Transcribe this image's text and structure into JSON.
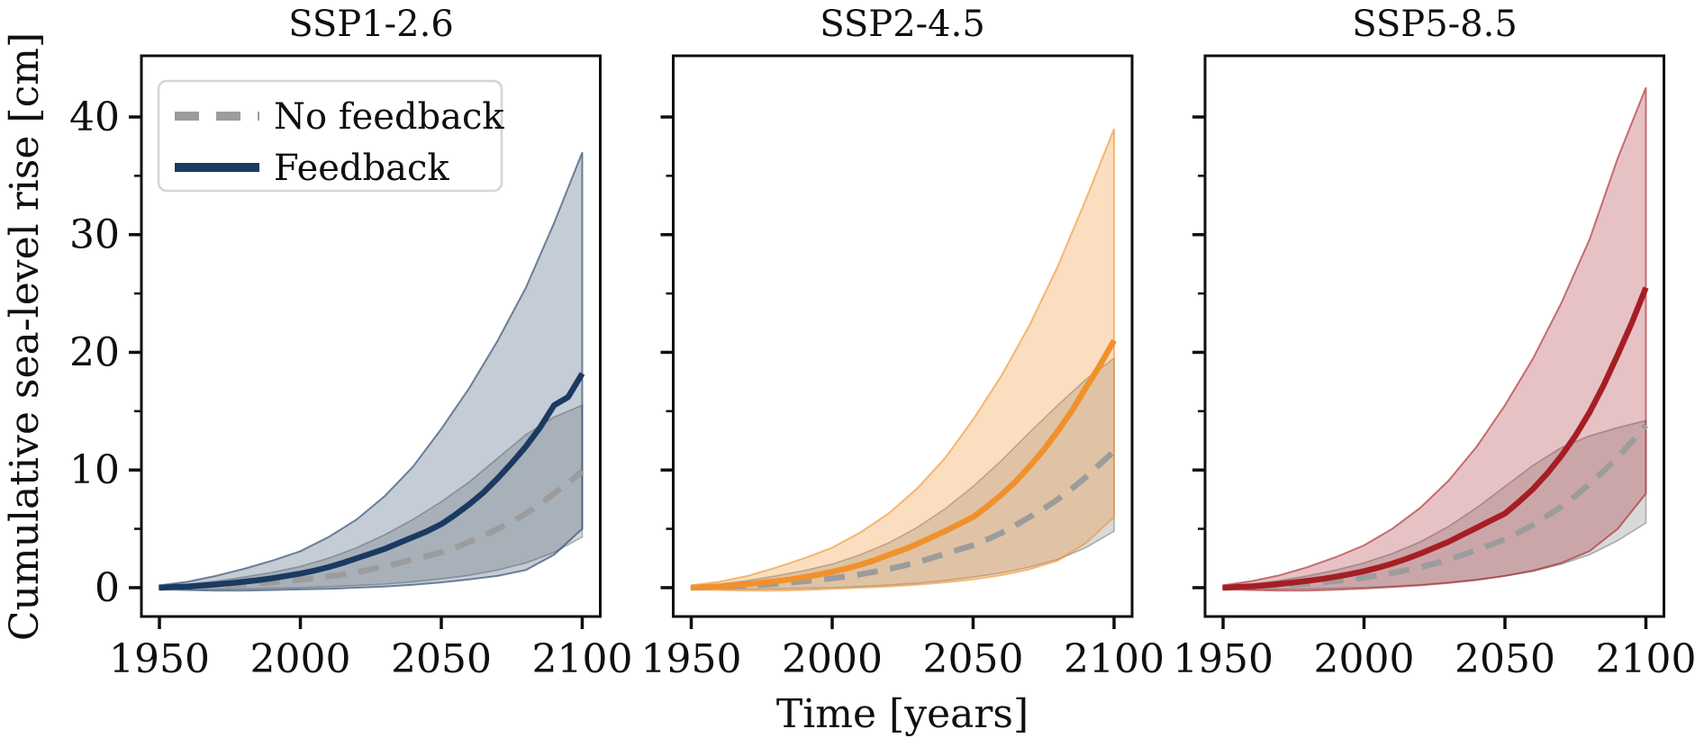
{
  "figure": {
    "background": "#ffffff",
    "text_color": "#0f0f0f"
  },
  "chart_data": {
    "type": "line",
    "title": "",
    "xlabel": "Time [years]",
    "ylabel": "Cumulative sea-level rise [cm]",
    "xlim": [
      1943.6,
      2106.4
    ],
    "ylim": [
      -2.45,
      45.2
    ],
    "xticks": [
      1950,
      2000,
      2050,
      2100
    ],
    "yticks": [
      0,
      10,
      20,
      30,
      40
    ],
    "yticks_minor": [
      5,
      15,
      25,
      35
    ],
    "grid": false,
    "legend": {
      "position": "upper left",
      "entries": [
        {
          "label": "No feedback",
          "style": "dashed",
          "color": "#9c9c9c"
        },
        {
          "label": "Feedback",
          "style": "solid",
          "color": "#1b3a62"
        }
      ]
    },
    "no_feedback_color": "#9c9c9c",
    "no_feedback_band_color": "#787878",
    "x_fine": [
      1950,
      1955,
      1960,
      1965,
      1970,
      1975,
      1980,
      1985,
      1990,
      1995,
      2000,
      2005,
      2010,
      2015,
      2020,
      2025,
      2030,
      2035,
      2040,
      2045,
      2050,
      2055,
      2060,
      2065,
      2070,
      2075,
      2080,
      2085,
      2090,
      2095,
      2100
    ],
    "x_coarse": [
      1950,
      1960,
      1970,
      1980,
      1990,
      2000,
      2010,
      2020,
      2030,
      2040,
      2050,
      2060,
      2070,
      2080,
      2090,
      2100
    ],
    "panels": [
      {
        "title": "SSP1-2.6",
        "color": "#1b3a62",
        "band_alpha": 0.26,
        "feedback": [
          0,
          0.05,
          0.1,
          0.18,
          0.27,
          0.38,
          0.5,
          0.64,
          0.8,
          1.0,
          1.2,
          1.45,
          1.75,
          2.1,
          2.5,
          2.9,
          3.3,
          3.8,
          4.3,
          4.8,
          5.4,
          6.2,
          7.1,
          8.1,
          9.3,
          10.6,
          12.0,
          13.6,
          15.5,
          16.2,
          18.2
        ],
        "no_feedback": [
          0,
          0.03,
          0.06,
          0.1,
          0.15,
          0.21,
          0.28,
          0.36,
          0.45,
          0.55,
          0.67,
          0.8,
          0.95,
          1.12,
          1.32,
          1.55,
          1.8,
          2.1,
          2.4,
          2.7,
          3.0,
          3.4,
          3.9,
          4.4,
          5.0,
          5.6,
          6.3,
          7.1,
          8.0,
          8.9,
          9.9
        ],
        "feedback_band_upper": [
          0.2,
          0.5,
          1.0,
          1.6,
          2.3,
          3.1,
          4.3,
          5.8,
          7.8,
          10.3,
          13.5,
          17.0,
          21.0,
          25.5,
          31.0,
          37.0
        ],
        "feedback_band_lower": [
          -0.15,
          -0.2,
          -0.25,
          -0.25,
          -0.2,
          -0.15,
          -0.1,
          0.0,
          0.1,
          0.25,
          0.45,
          0.7,
          1.0,
          1.5,
          2.8,
          5.0
        ],
        "no_feedback_band_upper": [
          0.1,
          0.3,
          0.55,
          0.9,
          1.3,
          1.8,
          2.5,
          3.4,
          4.5,
          5.8,
          7.3,
          9.0,
          11.0,
          13.0,
          14.5,
          15.5
        ],
        "no_feedback_band_lower": [
          -0.1,
          -0.12,
          -0.12,
          -0.1,
          -0.05,
          0.0,
          0.08,
          0.18,
          0.3,
          0.5,
          0.75,
          1.05,
          1.5,
          2.1,
          3.0,
          4.3
        ]
      },
      {
        "title": "SSP2-4.5",
        "color": "#f0912c",
        "band_alpha": 0.3,
        "feedback": [
          0,
          0.05,
          0.11,
          0.2,
          0.3,
          0.42,
          0.55,
          0.7,
          0.88,
          1.1,
          1.35,
          1.63,
          1.95,
          2.33,
          2.78,
          3.2,
          3.7,
          4.25,
          4.8,
          5.4,
          6.0,
          6.9,
          7.9,
          9.0,
          10.3,
          11.7,
          13.3,
          15.0,
          17.0,
          18.9,
          21.0
        ],
        "no_feedback": [
          0,
          0.03,
          0.07,
          0.12,
          0.18,
          0.25,
          0.33,
          0.43,
          0.54,
          0.66,
          0.8,
          0.96,
          1.14,
          1.35,
          1.58,
          1.85,
          2.15,
          2.5,
          2.87,
          3.25,
          3.6,
          4.1,
          4.65,
          5.3,
          6.0,
          6.7,
          7.5,
          8.4,
          9.4,
          10.5,
          11.6
        ],
        "feedback_band_upper": [
          0.2,
          0.5,
          1.0,
          1.7,
          2.5,
          3.4,
          4.7,
          6.3,
          8.4,
          11.0,
          14.3,
          18.0,
          22.3,
          27.3,
          33.0,
          39.0
        ],
        "feedback_band_lower": [
          -0.15,
          -0.2,
          -0.25,
          -0.25,
          -0.2,
          -0.1,
          0.0,
          0.1,
          0.25,
          0.45,
          0.7,
          1.05,
          1.55,
          2.3,
          3.8,
          6.0
        ],
        "no_feedback_band_upper": [
          0.1,
          0.3,
          0.6,
          1.0,
          1.45,
          2.0,
          2.8,
          3.8,
          5.1,
          6.7,
          8.6,
          10.8,
          13.2,
          15.5,
          17.7,
          19.5
        ],
        "no_feedback_band_lower": [
          -0.1,
          -0.12,
          -0.12,
          -0.1,
          -0.05,
          0.0,
          0.1,
          0.22,
          0.38,
          0.6,
          0.9,
          1.25,
          1.75,
          2.4,
          3.4,
          4.8
        ]
      },
      {
        "title": "SSP5-8.5",
        "color": "#a61e24",
        "band_alpha": 0.27,
        "feedback": [
          0,
          0.05,
          0.11,
          0.2,
          0.31,
          0.44,
          0.58,
          0.74,
          0.93,
          1.15,
          1.4,
          1.7,
          2.05,
          2.45,
          2.9,
          3.4,
          3.9,
          4.5,
          5.1,
          5.7,
          6.3,
          7.3,
          8.4,
          9.7,
          11.2,
          12.9,
          14.9,
          17.2,
          19.8,
          22.5,
          25.5
        ],
        "no_feedback": [
          0,
          0.03,
          0.07,
          0.12,
          0.18,
          0.26,
          0.35,
          0.45,
          0.57,
          0.7,
          0.85,
          1.03,
          1.24,
          1.48,
          1.75,
          2.05,
          2.4,
          2.8,
          3.2,
          3.65,
          4.1,
          4.7,
          5.35,
          6.1,
          6.9,
          7.8,
          8.8,
          9.9,
          11.1,
          12.4,
          13.8
        ],
        "feedback_band_upper": [
          0.2,
          0.55,
          1.05,
          1.75,
          2.6,
          3.6,
          5.0,
          6.8,
          9.1,
          12.0,
          15.5,
          19.5,
          24.2,
          29.6,
          36.5,
          42.5
        ],
        "feedback_band_lower": [
          -0.15,
          -0.2,
          -0.25,
          -0.25,
          -0.18,
          -0.08,
          0.05,
          0.2,
          0.4,
          0.65,
          1.0,
          1.45,
          2.1,
          3.1,
          5.0,
          8.0
        ],
        "no_feedback_band_upper": [
          0.1,
          0.3,
          0.6,
          1.0,
          1.5,
          2.1,
          2.9,
          3.9,
          5.2,
          6.8,
          8.6,
          10.4,
          11.9,
          12.9,
          13.6,
          14.2
        ],
        "no_feedback_band_lower": [
          -0.1,
          -0.12,
          -0.12,
          -0.1,
          -0.05,
          0.02,
          0.12,
          0.25,
          0.45,
          0.7,
          1.0,
          1.4,
          2.0,
          2.8,
          4.0,
          5.5
        ]
      }
    ]
  }
}
